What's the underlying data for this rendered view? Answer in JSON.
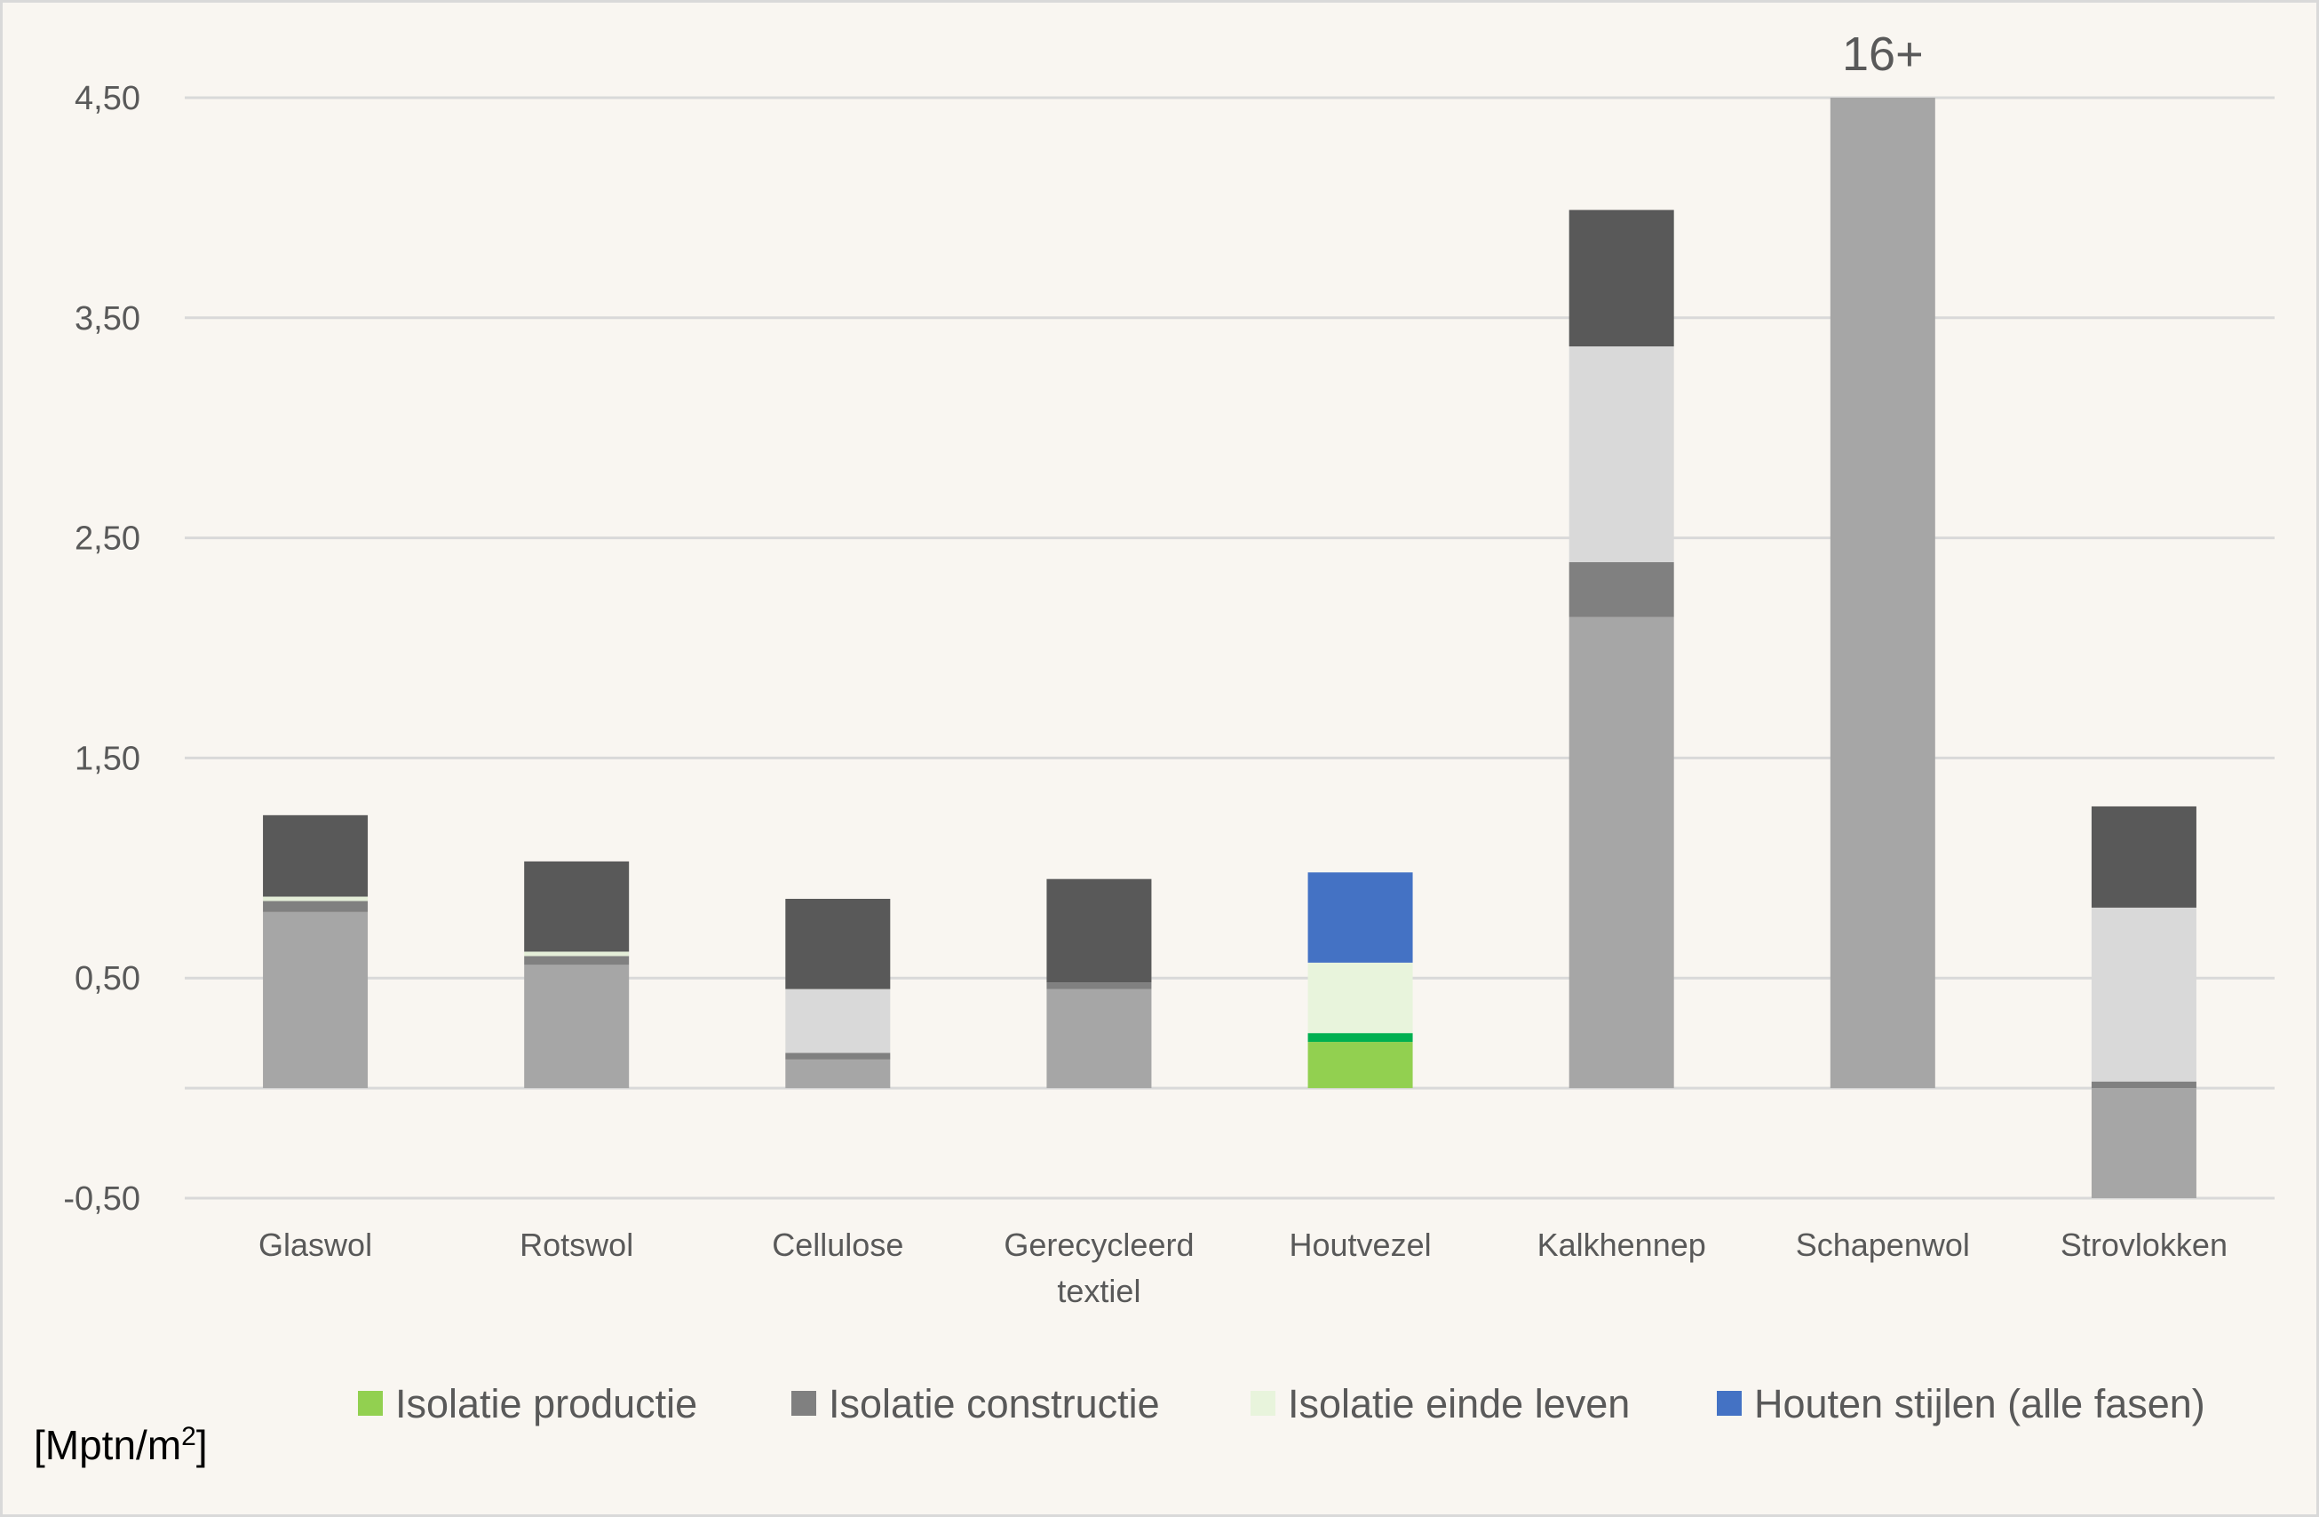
{
  "chart_data": {
    "type": "bar",
    "stacked": true,
    "ylabel": "[Mptn/m",
    "ylabel_superscript": "2",
    "ylabel_suffix": "]",
    "yticks": [
      4.5,
      3.5,
      2.5,
      1.5,
      0.5,
      -0.5
    ],
    "ytick_labels": [
      "4,50",
      "3,50",
      "2,50",
      "1,50",
      "0,50",
      "-0,50"
    ],
    "ylim": [
      -0.5,
      4.5
    ],
    "y_baseline": 0,
    "grid": true,
    "legend_position": "bottom",
    "categories": [
      [
        "Glaswol"
      ],
      [
        "Rotswol"
      ],
      [
        "Cellulose"
      ],
      [
        "Gerecycleerd",
        "textiel"
      ],
      [
        "Houtvezel"
      ],
      [
        "Kalkhennep"
      ],
      [
        "Schapenwol"
      ],
      [
        "Strovlokken"
      ]
    ],
    "annotations": [
      {
        "category_index": 6,
        "text": "16+"
      }
    ],
    "stacks": [
      [
        {
          "series": 1,
          "value": 0.8,
          "color": "#a6a6a6"
        },
        {
          "series": 1,
          "value": 0.05,
          "color": "#808080"
        },
        {
          "series": 2,
          "value": 0.02,
          "color": "#e4eed8"
        },
        {
          "series": 1,
          "value": 0.37,
          "color": "#595959"
        }
      ],
      [
        {
          "series": 1,
          "value": 0.56,
          "color": "#a6a6a6"
        },
        {
          "series": 1,
          "value": 0.04,
          "color": "#808080"
        },
        {
          "series": 2,
          "value": 0.02,
          "color": "#e4eed8"
        },
        {
          "series": 1,
          "value": 0.41,
          "color": "#595959"
        }
      ],
      [
        {
          "series": 0,
          "value": 0.13,
          "color": "#a6a6a6"
        },
        {
          "series": 1,
          "value": 0.03,
          "color": "#808080"
        },
        {
          "series": 2,
          "value": 0.29,
          "color": "#d9d9d9"
        },
        {
          "series": 1,
          "value": 0.41,
          "color": "#595959"
        }
      ],
      [
        {
          "series": 0,
          "value": 0.45,
          "color": "#a6a6a6"
        },
        {
          "series": 1,
          "value": 0.03,
          "color": "#808080"
        },
        {
          "series": 1,
          "value": 0.47,
          "color": "#595959"
        }
      ],
      [
        {
          "series": 0,
          "value": 0.21,
          "color": "#92d050"
        },
        {
          "series": 1,
          "value": 0.04,
          "color": "#00b050"
        },
        {
          "series": 2,
          "value": 0.32,
          "color": "#e8f4dc"
        },
        {
          "series": 3,
          "value": 0.41,
          "color": "#4472c4"
        }
      ],
      [
        {
          "series": 0,
          "value": 2.14,
          "color": "#a6a6a6"
        },
        {
          "series": 1,
          "value": 0.25,
          "color": "#808080"
        },
        {
          "series": 2,
          "value": 0.98,
          "color": "#d9d9d9"
        },
        {
          "series": 1,
          "value": 0.62,
          "color": "#595959"
        }
      ],
      [
        {
          "series": 0,
          "value": 4.5,
          "color": "#a6a6a6"
        }
      ],
      [
        {
          "series": 0,
          "value": -0.5,
          "color": "#a6a6a6"
        },
        {
          "series": 1,
          "value": 0.03,
          "color": "#808080"
        },
        {
          "series": 2,
          "value": 0.79,
          "color": "#d9d9d9"
        },
        {
          "series": 1,
          "value": 0.46,
          "color": "#595959"
        }
      ]
    ],
    "series": [
      {
        "name": "Isolatie productie",
        "color": "#92d050"
      },
      {
        "name": "Isolatie constructie",
        "color": "#808080"
      },
      {
        "name": "Isolatie einde leven",
        "color": "#e8f4dc"
      },
      {
        "name": "Houten stijlen (alle fasen)",
        "color": "#4472c4"
      }
    ]
  }
}
